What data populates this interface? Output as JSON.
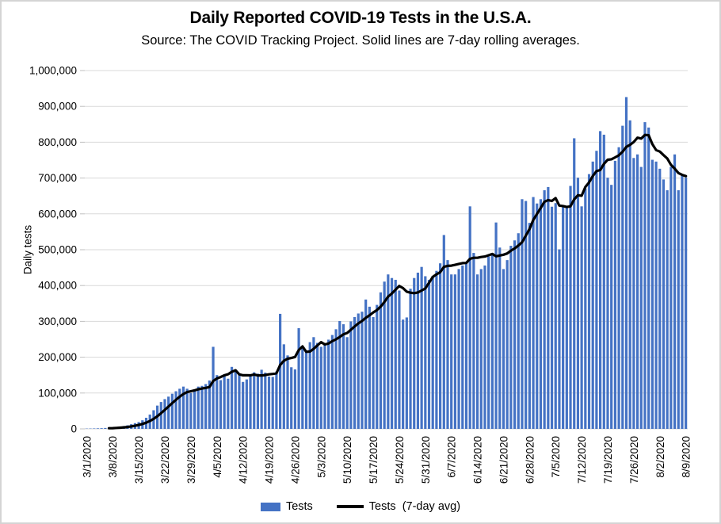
{
  "header": {
    "title": "Daily Reported COVID-19 Tests in the U.S.A.",
    "subtitle": "Source: The COVID Tracking Project. Solid lines are 7-day rolling averages."
  },
  "colors": {
    "bar": "#4472C4",
    "line": "#000000",
    "gridline": "#D9D9D9",
    "axis": "#BFBFBF",
    "text": "#000000",
    "frame_border": "#D4D4D4"
  },
  "y_axis": {
    "label": "Daily tests",
    "tick_labels": [
      "0",
      "100,000",
      "200,000",
      "300,000",
      "400,000",
      "500,000",
      "600,000",
      "700,000",
      "800,000",
      "900,000",
      "1,000,000"
    ],
    "min": 0,
    "max": 1000000,
    "step": 100000
  },
  "legend": {
    "bars_label": "Tests",
    "line_label": "Tests  (7-day avg)"
  },
  "chart_data": {
    "type": "bar",
    "title": "Daily Reported COVID-19 Tests in the U.S.A.",
    "subtitle": "Source: The COVID Tracking Project. Solid lines are 7-day rolling averages.",
    "xlabel": "",
    "ylabel": "Daily tests",
    "ylim": [
      0,
      1000000
    ],
    "y_tick_step": 100000,
    "grid": "horizontal",
    "legend_position": "bottom",
    "x_tick_labels": [
      "3/1/2020",
      "3/8/2020",
      "3/15/2020",
      "3/22/2020",
      "3/29/2020",
      "4/5/2020",
      "4/12/2020",
      "4/19/2020",
      "4/26/2020",
      "5/3/2020",
      "5/10/2020",
      "5/17/2020",
      "5/24/2020",
      "5/31/2020",
      "6/7/2020",
      "6/14/2020",
      "6/21/2020",
      "6/28/2020",
      "7/5/2020",
      "7/12/2020",
      "7/19/2020",
      "7/26/2020",
      "8/2/2020",
      "8/9/2020"
    ],
    "x_tick_every": 7,
    "x": [
      "3/1/2020",
      "3/2/2020",
      "3/3/2020",
      "3/4/2020",
      "3/5/2020",
      "3/6/2020",
      "3/7/2020",
      "3/8/2020",
      "3/9/2020",
      "3/10/2020",
      "3/11/2020",
      "3/12/2020",
      "3/13/2020",
      "3/14/2020",
      "3/15/2020",
      "3/16/2020",
      "3/17/2020",
      "3/18/2020",
      "3/19/2020",
      "3/20/2020",
      "3/21/2020",
      "3/22/2020",
      "3/23/2020",
      "3/24/2020",
      "3/25/2020",
      "3/26/2020",
      "3/27/2020",
      "3/28/2020",
      "3/29/2020",
      "3/30/2020",
      "3/31/2020",
      "4/1/2020",
      "4/2/2020",
      "4/3/2020",
      "4/4/2020",
      "4/5/2020",
      "4/6/2020",
      "4/7/2020",
      "4/8/2020",
      "4/9/2020",
      "4/10/2020",
      "4/11/2020",
      "4/12/2020",
      "4/13/2020",
      "4/14/2020",
      "4/15/2020",
      "4/16/2020",
      "4/17/2020",
      "4/18/2020",
      "4/19/2020",
      "4/20/2020",
      "4/21/2020",
      "4/22/2020",
      "4/23/2020",
      "4/24/2020",
      "4/25/2020",
      "4/26/2020",
      "4/27/2020",
      "4/28/2020",
      "4/29/2020",
      "4/30/2020",
      "5/1/2020",
      "5/2/2020",
      "5/3/2020",
      "5/4/2020",
      "5/5/2020",
      "5/6/2020",
      "5/7/2020",
      "5/8/2020",
      "5/9/2020",
      "5/10/2020",
      "5/11/2020",
      "5/12/2020",
      "5/13/2020",
      "5/14/2020",
      "5/15/2020",
      "5/16/2020",
      "5/17/2020",
      "5/18/2020",
      "5/19/2020",
      "5/20/2020",
      "5/21/2020",
      "5/22/2020",
      "5/23/2020",
      "5/24/2020",
      "5/25/2020",
      "5/26/2020",
      "5/27/2020",
      "5/28/2020",
      "5/29/2020",
      "5/30/2020",
      "5/31/2020",
      "6/1/2020",
      "6/2/2020",
      "6/3/2020",
      "6/4/2020",
      "6/5/2020",
      "6/6/2020",
      "6/7/2020",
      "6/8/2020",
      "6/9/2020",
      "6/10/2020",
      "6/11/2020",
      "6/12/2020",
      "6/13/2020",
      "6/14/2020",
      "6/15/2020",
      "6/16/2020",
      "6/17/2020",
      "6/18/2020",
      "6/19/2020",
      "6/20/2020",
      "6/21/2020",
      "6/22/2020",
      "6/23/2020",
      "6/24/2020",
      "6/25/2020",
      "6/26/2020",
      "6/27/2020",
      "6/28/2020",
      "6/29/2020",
      "6/30/2020",
      "7/1/2020",
      "7/2/2020",
      "7/3/2020",
      "7/4/2020",
      "7/5/2020",
      "7/6/2020",
      "7/7/2020",
      "7/8/2020",
      "7/9/2020",
      "7/10/2020",
      "7/11/2020",
      "7/12/2020",
      "7/13/2020",
      "7/14/2020",
      "7/15/2020",
      "7/16/2020",
      "7/17/2020",
      "7/18/2020",
      "7/19/2020",
      "7/20/2020",
      "7/21/2020",
      "7/22/2020",
      "7/23/2020",
      "7/24/2020",
      "7/25/2020",
      "7/26/2020",
      "7/27/2020",
      "7/28/2020",
      "7/29/2020",
      "7/30/2020",
      "7/31/2020",
      "8/1/2020",
      "8/2/2020",
      "8/3/2020",
      "8/4/2020",
      "8/5/2020",
      "8/6/2020",
      "8/7/2020",
      "8/8/2020",
      "8/9/2020"
    ],
    "series": [
      {
        "name": "Tests",
        "type": "bar",
        "color": "#4472C4",
        "values": [
          800,
          900,
          1200,
          1500,
          1900,
          2500,
          3000,
          3500,
          4500,
          6000,
          8000,
          10000,
          13000,
          16000,
          19000,
          24000,
          31000,
          40000,
          52000,
          65000,
          75000,
          83000,
          90000,
          98000,
          105000,
          112000,
          118000,
          112000,
          100000,
          108000,
          118000,
          120000,
          125000,
          135000,
          229000,
          150000,
          136000,
          152000,
          140000,
          173000,
          165000,
          150000,
          131000,
          138000,
          148000,
          158000,
          154000,
          165000,
          157000,
          146000,
          145000,
          160000,
          321000,
          236000,
          205000,
          172000,
          166000,
          281000,
          230000,
          216000,
          242000,
          256000,
          240000,
          229000,
          236000,
          249000,
          262000,
          278000,
          301000,
          292000,
          256000,
          300000,
          312000,
          322000,
          327000,
          361000,
          341000,
          312000,
          346000,
          381000,
          411000,
          431000,
          421000,
          416000,
          386000,
          305000,
          311000,
          391000,
          421000,
          436000,
          452000,
          426000,
          416000,
          427000,
          441000,
          462000,
          541000,
          471000,
          431000,
          431000,
          446000,
          456000,
          466000,
          621000,
          491000,
          431000,
          446000,
          456000,
          481000,
          491000,
          576000,
          506000,
          446000,
          471000,
          511000,
          526000,
          546000,
          641000,
          636000,
          575000,
          647000,
          629000,
          641000,
          666000,
          675000,
          620000,
          630000,
          501000,
          621000,
          622000,
          678000,
          811000,
          701000,
          621000,
          671000,
          711000,
          746000,
          776000,
          831000,
          821000,
          701000,
          681000,
          748000,
          786000,
          846000,
          926000,
          861000,
          756000,
          766000,
          731000,
          856000,
          841000,
          751000,
          746000,
          726000,
          696000,
          666000,
          731000,
          766000,
          666000,
          711000,
          701000
        ]
      },
      {
        "name": "Tests  (7-day avg)",
        "type": "line",
        "color": "#000000",
        "derived_from": "7-day rolling average of Tests"
      }
    ]
  }
}
